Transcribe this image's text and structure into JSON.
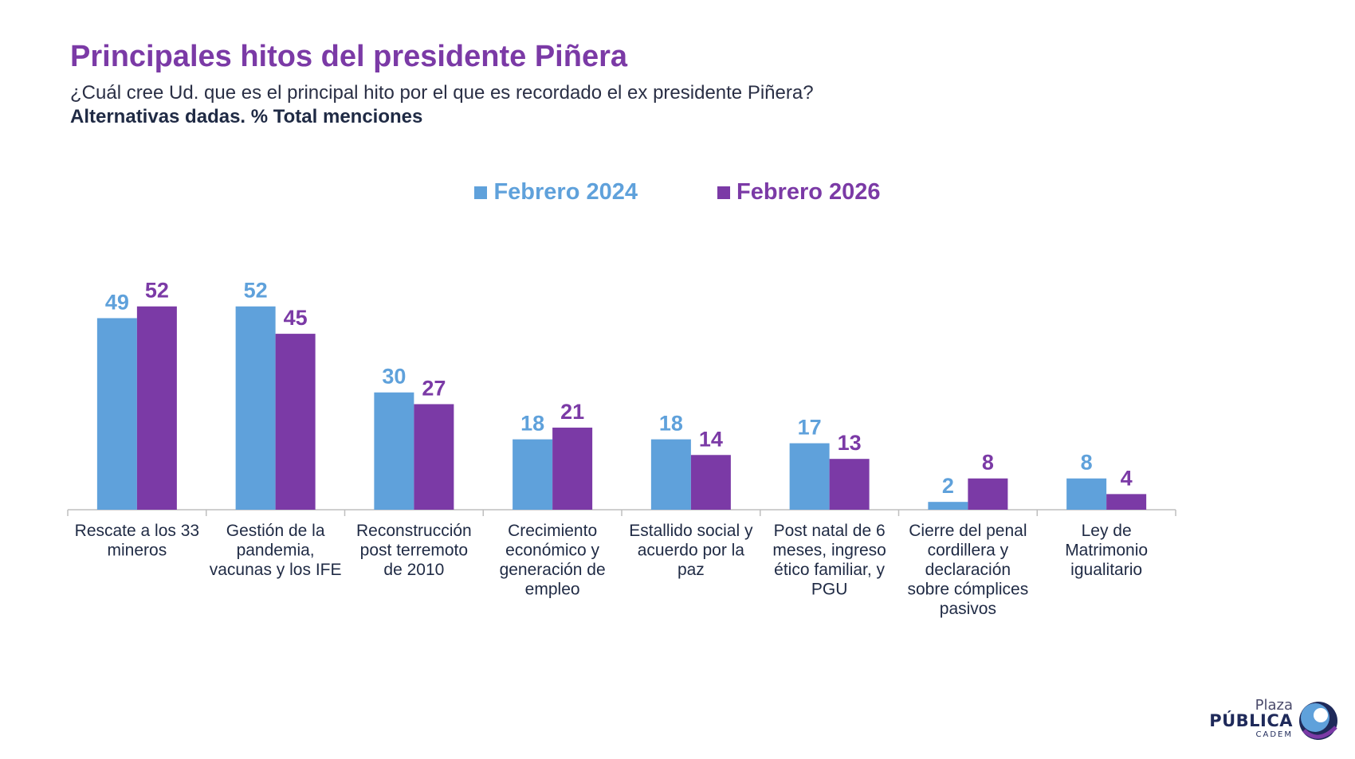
{
  "page": {
    "title": "Principales hitos del presidente Piñera",
    "question": "¿Cuál cree Ud. que es el principal hito por el que es recordado el ex presidente Piñera?",
    "note": "Alternativas dadas. % Total menciones"
  },
  "logo": {
    "line1": "Plaza",
    "line2": "PÚBLICA",
    "line3": "CADEM"
  },
  "chart_data": {
    "type": "bar",
    "title": "Principales hitos del presidente Piñera",
    "xlabel": "",
    "ylabel": "% Total menciones",
    "ylim": [
      0,
      55
    ],
    "grid": false,
    "legend_position": "top-center",
    "categories": [
      [
        "Rescate a los 33",
        "mineros"
      ],
      [
        "Gestión de la",
        "pandemia,",
        "vacunas y los IFE"
      ],
      [
        "Reconstrucción",
        "post terremoto",
        "de 2010"
      ],
      [
        "Crecimiento",
        "económico y",
        "generación de",
        "empleo"
      ],
      [
        "Estallido social y",
        "acuerdo por la",
        "paz"
      ],
      [
        "Post natal de 6",
        "meses, ingreso",
        "ético familiar, y",
        "PGU"
      ],
      [
        "Cierre del penal",
        "cordillera y",
        "declaración",
        "sobre cómplices",
        "pasivos"
      ],
      [
        "Ley de",
        "Matrimonio",
        "igualitario"
      ]
    ],
    "series": [
      {
        "name": "Febrero 2024",
        "color": "#5fa1db",
        "values": [
          49,
          52,
          30,
          18,
          18,
          17,
          2,
          8
        ]
      },
      {
        "name": "Febrero 2026",
        "color": "#7b3aa6",
        "values": [
          52,
          45,
          27,
          21,
          14,
          13,
          8,
          4
        ]
      }
    ]
  }
}
